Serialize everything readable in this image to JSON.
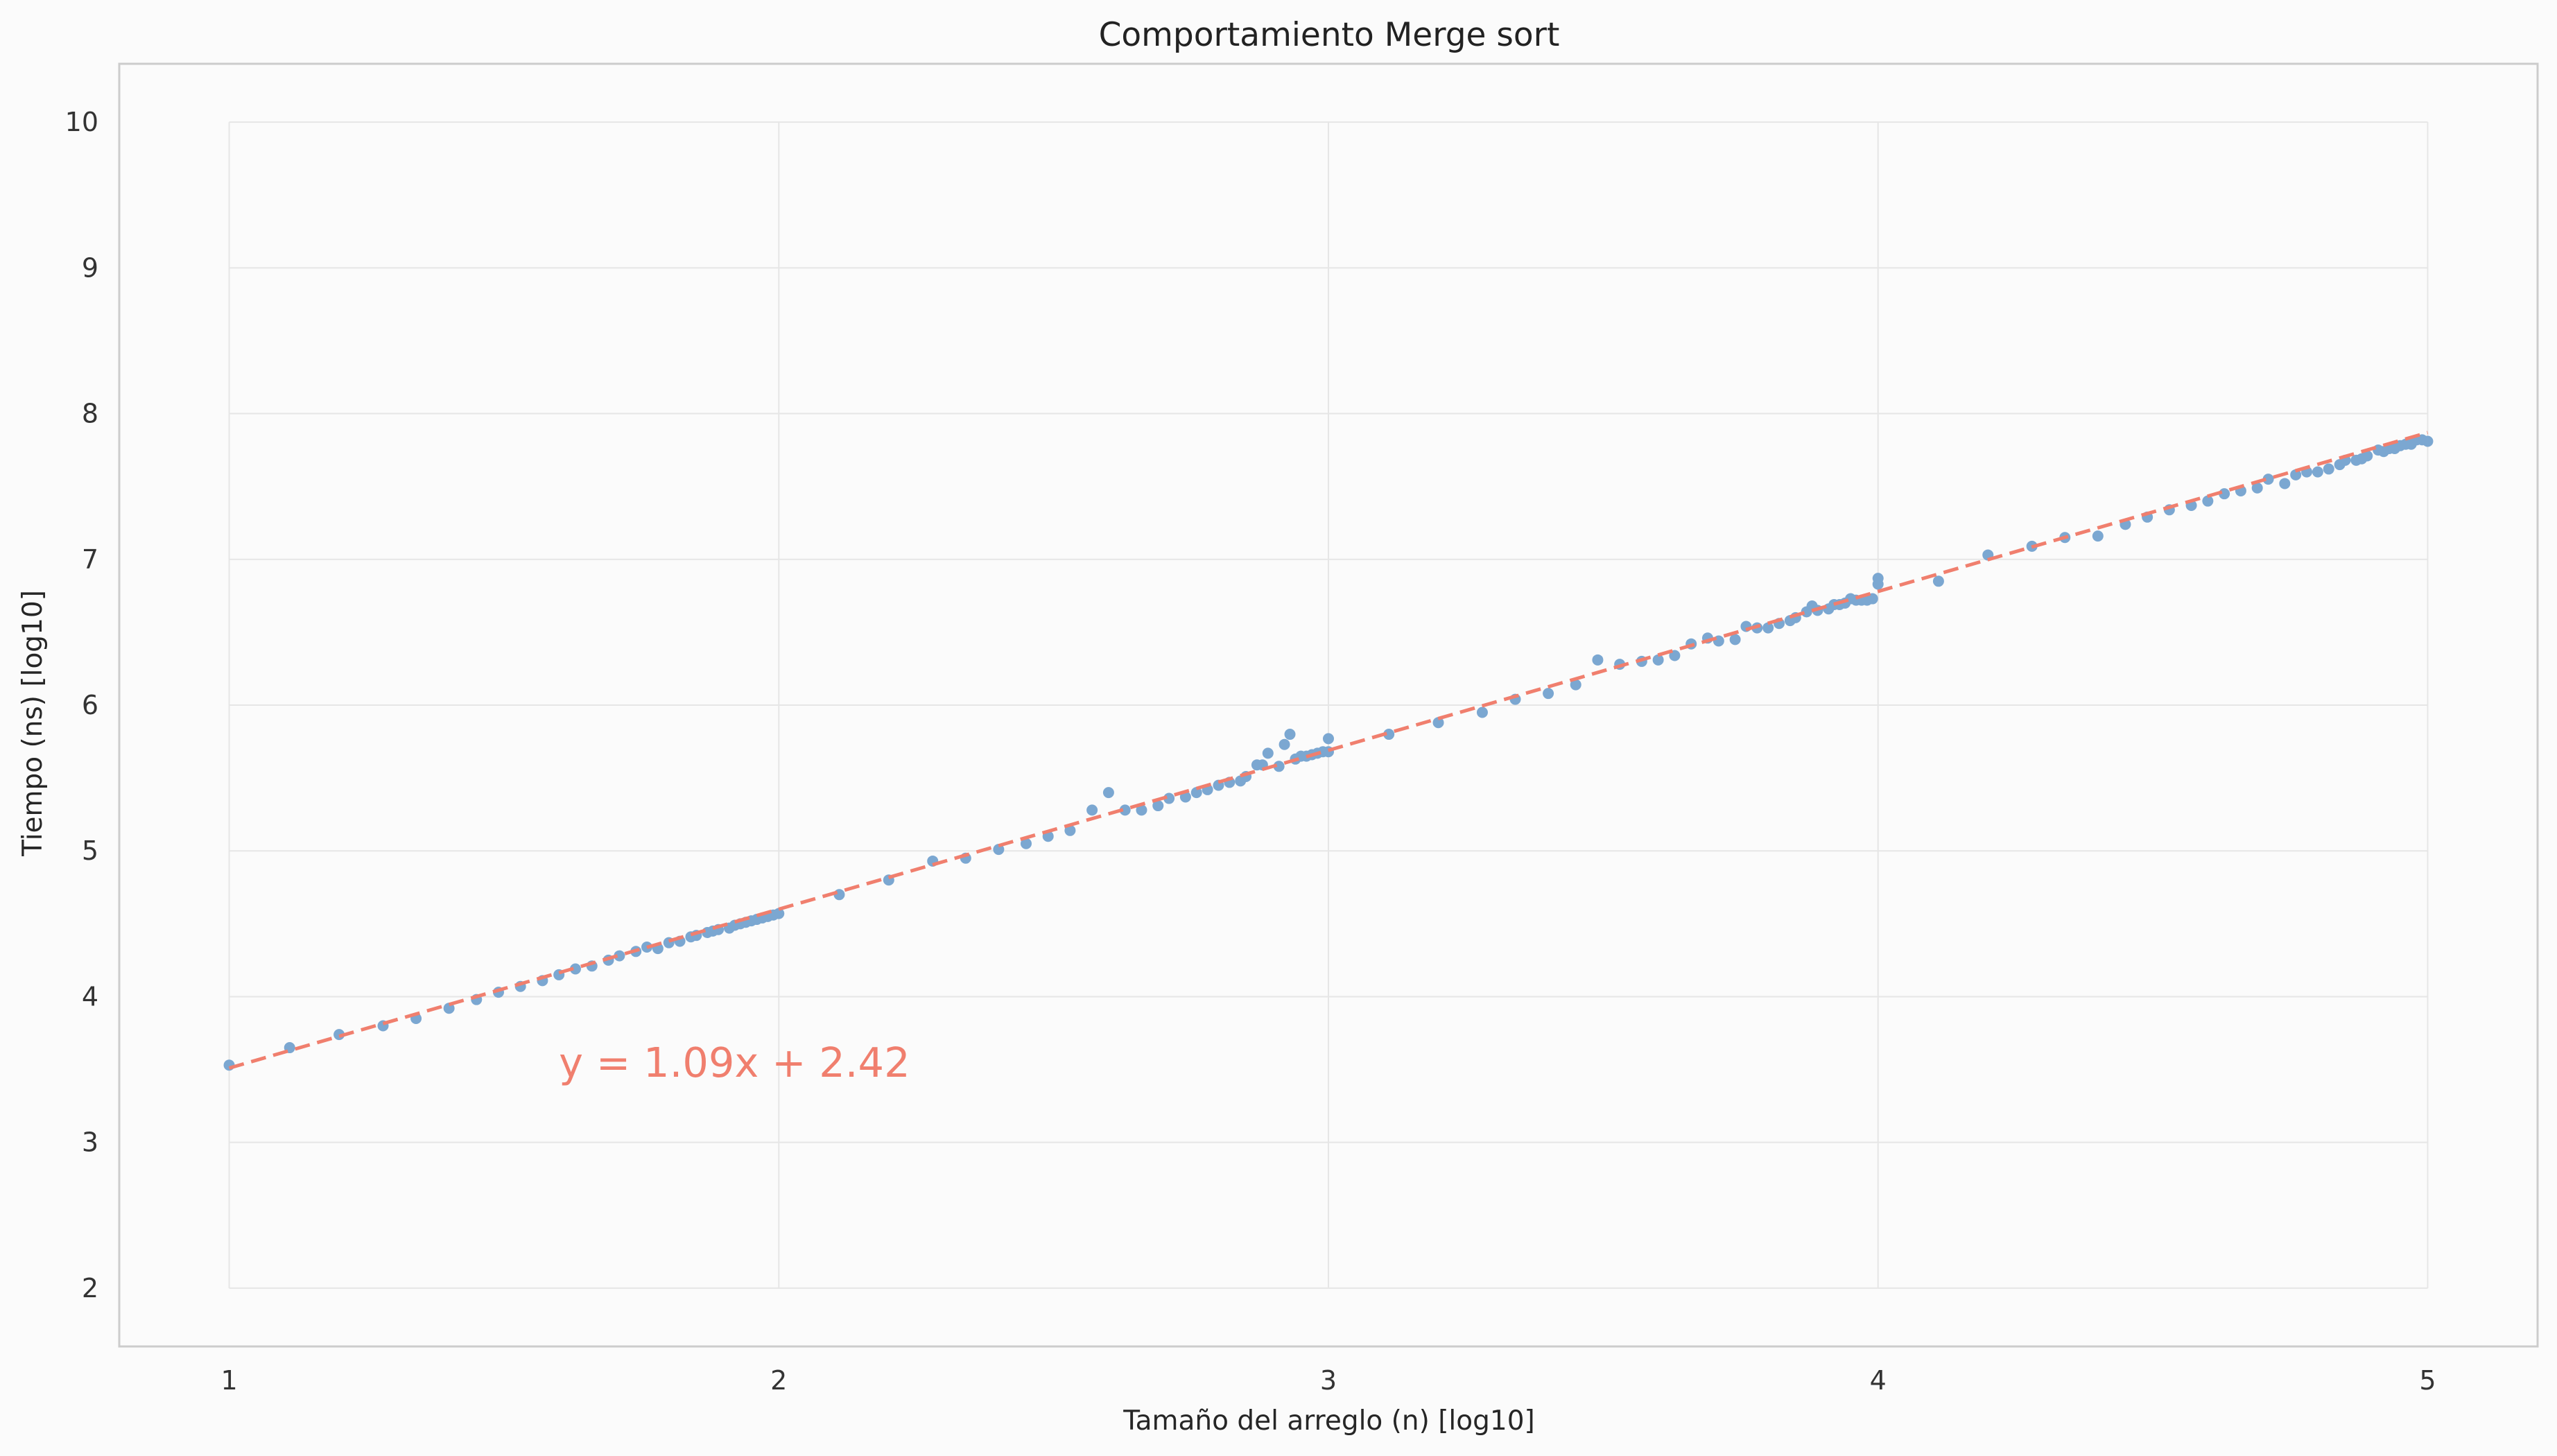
{
  "chart_data": {
    "type": "scatter",
    "title": "Comportamiento Merge sort",
    "xlabel": "Tamaño del arreglo (n) [log10]",
    "ylabel": "Tiempo (ns) [log10]",
    "xlim": [
      0.8,
      5.2
    ],
    "ylim": [
      1.6,
      10.4
    ],
    "xticks": [
      1,
      2,
      3,
      4,
      5
    ],
    "yticks": [
      2,
      3,
      4,
      5,
      6,
      7,
      8,
      9,
      10
    ],
    "grid": true,
    "legend": "none",
    "colors": {
      "points": "#7ba7d1",
      "fit": "#f07f6e",
      "grid": "#e6e6e6",
      "spine": "#cccccc",
      "background": "#fbfbfb"
    },
    "fit_line": {
      "slope": 1.09,
      "intercept": 2.42,
      "x_range": [
        1,
        5
      ]
    },
    "annotation": {
      "text": "y = 1.09x + 2.42",
      "x": 1.6,
      "y": 3.45
    },
    "series": [
      {
        "x": [
          1.0,
          1.11,
          1.2,
          1.28,
          1.34,
          1.4,
          1.45,
          1.49,
          1.53,
          1.57,
          1.6,
          1.63,
          1.66,
          1.69,
          1.71,
          1.74,
          1.76,
          1.78,
          1.8,
          1.82,
          1.84,
          1.85,
          1.87,
          1.88,
          1.89,
          1.91,
          1.92,
          1.93,
          1.94,
          1.95,
          1.96,
          1.97,
          1.98,
          1.99,
          2.0,
          2.11,
          2.2,
          2.28,
          2.34,
          2.4,
          2.45,
          2.49,
          2.53,
          2.57,
          2.6,
          2.63,
          2.66,
          2.69,
          2.71,
          2.74,
          2.76,
          2.78,
          2.8,
          2.82,
          2.84,
          2.85,
          2.87,
          2.88,
          2.89,
          2.91,
          2.92,
          2.93,
          2.94,
          2.95,
          2.96,
          2.97,
          2.98,
          2.99,
          3.0,
          3.0,
          3.11,
          3.2,
          3.28,
          3.34,
          3.4,
          3.45,
          3.49,
          3.53,
          3.57,
          3.6,
          3.63,
          3.66,
          3.69,
          3.71,
          3.74,
          3.76,
          3.78,
          3.8,
          3.82,
          3.84,
          3.85,
          3.87,
          3.88,
          3.89,
          3.91,
          3.92,
          3.93,
          3.94,
          3.95,
          3.96,
          3.97,
          3.98,
          3.99,
          4.0,
          4.0,
          4.11,
          4.2,
          4.28,
          4.34,
          4.4,
          4.45,
          4.49,
          4.53,
          4.57,
          4.6,
          4.63,
          4.66,
          4.69,
          4.71,
          4.74,
          4.76,
          4.78,
          4.8,
          4.82,
          4.84,
          4.85,
          4.87,
          4.88,
          4.89,
          4.91,
          4.92,
          4.93,
          4.94,
          4.95,
          4.96,
          4.97,
          4.98,
          4.99,
          5.0
        ],
        "y": [
          3.53,
          3.65,
          3.74,
          3.8,
          3.85,
          3.92,
          3.98,
          4.03,
          4.07,
          4.11,
          4.15,
          4.19,
          4.21,
          4.25,
          4.28,
          4.31,
          4.34,
          4.33,
          4.37,
          4.38,
          4.41,
          4.42,
          4.44,
          4.45,
          4.46,
          4.47,
          4.49,
          4.5,
          4.51,
          4.52,
          4.53,
          4.54,
          4.55,
          4.56,
          4.57,
          4.7,
          4.8,
          4.93,
          4.95,
          5.01,
          5.05,
          5.1,
          5.14,
          5.28,
          5.4,
          5.28,
          5.28,
          5.31,
          5.36,
          5.37,
          5.4,
          5.42,
          5.45,
          5.47,
          5.48,
          5.51,
          5.59,
          5.59,
          5.67,
          5.58,
          5.73,
          5.8,
          5.63,
          5.65,
          5.65,
          5.66,
          5.67,
          5.68,
          5.77,
          5.68,
          5.8,
          5.88,
          5.95,
          6.04,
          6.08,
          6.14,
          6.31,
          6.28,
          6.3,
          6.31,
          6.34,
          6.42,
          6.46,
          6.44,
          6.45,
          6.54,
          6.53,
          6.53,
          6.56,
          6.58,
          6.6,
          6.64,
          6.68,
          6.65,
          6.66,
          6.69,
          6.69,
          6.7,
          6.73,
          6.72,
          6.72,
          6.72,
          6.73,
          6.83,
          6.87,
          6.85,
          7.03,
          7.09,
          7.15,
          7.16,
          7.24,
          7.29,
          7.34,
          7.37,
          7.4,
          7.45,
          7.47,
          7.49,
          7.55,
          7.52,
          7.58,
          7.6,
          7.6,
          7.62,
          7.65,
          7.68,
          7.68,
          7.69,
          7.71,
          7.75,
          7.74,
          7.76,
          7.76,
          7.78,
          7.79,
          7.79,
          7.82,
          7.82,
          7.81
        ]
      }
    ]
  }
}
